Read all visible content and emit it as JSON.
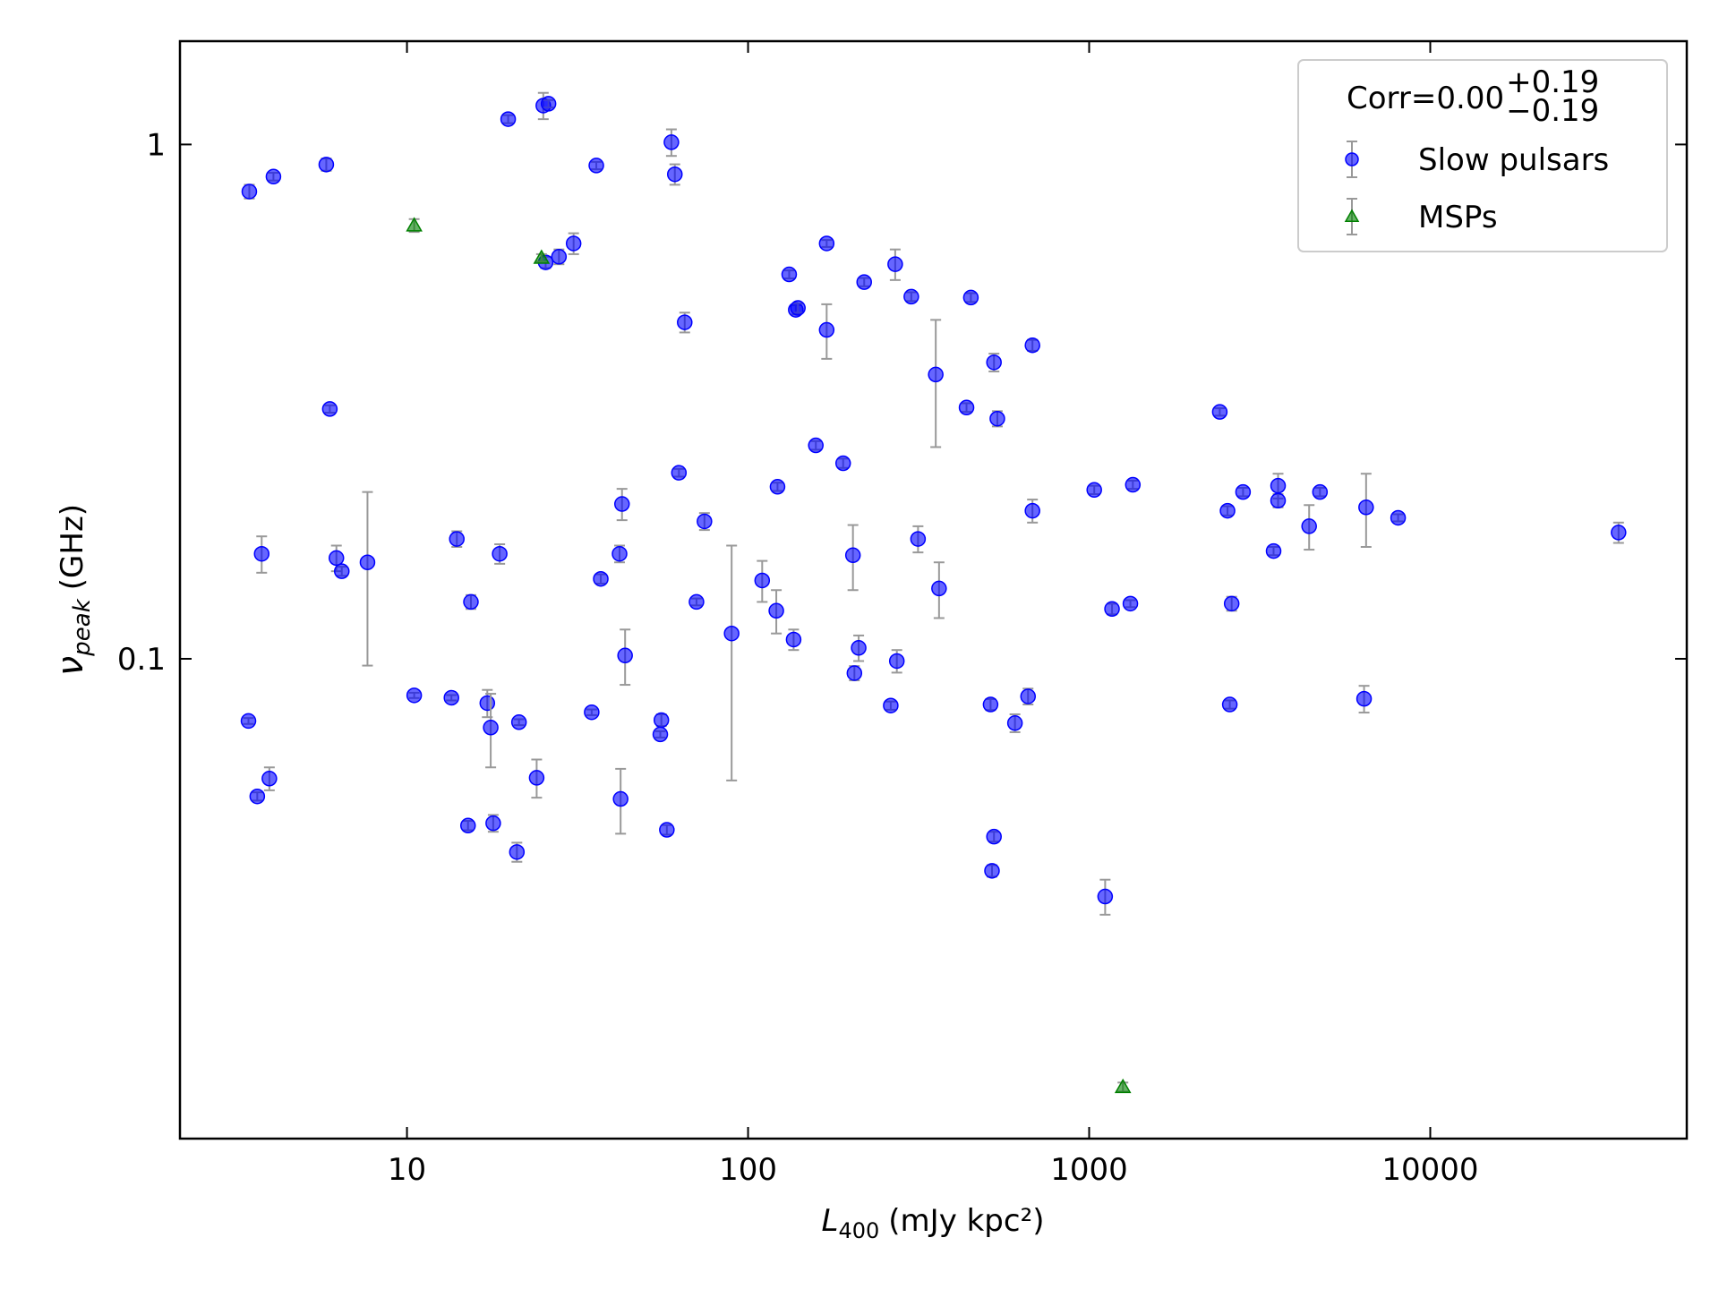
{
  "chart_data": {
    "type": "scatter",
    "x_label": {
      "symbol": "L",
      "subscript": "400",
      "unit": "(mJy kpc²)"
    },
    "y_label": {
      "symbol": "ν",
      "subscript": "peak",
      "unit": "(GHz)"
    },
    "xscale": "log",
    "yscale": "log",
    "xlim": [
      2.16,
      56500
    ],
    "ylim": [
      0.01167,
      1.588
    ],
    "xticks": [
      10,
      100,
      1000,
      10000
    ],
    "yticks": [
      0.1,
      1
    ],
    "legend": {
      "position": "upper right",
      "title": {
        "text": "Corr=0.00",
        "upper": "+0.19",
        "lower": "−0.19"
      }
    },
    "errorbar_color": "#999999",
    "series": [
      {
        "name": "Slow pulsars",
        "marker": "circle",
        "color": "#0000ff",
        "x": [
          3.45,
          4.06,
          5.8,
          19.8,
          25.1,
          26,
          25.5,
          35.9,
          59.6,
          61,
          27.9,
          30.8,
          65.2,
          5.94,
          132,
          138,
          140,
          170,
          170,
          219,
          270,
          301,
          355,
          450,
          526,
          682,
          437,
          538,
          158,
          190,
          62.7,
          122,
          42.7,
          74.5,
          682,
          1035,
          1343,
          2415,
          2545,
          2826,
          3580,
          3580,
          4750,
          4415,
          3473,
          6485,
          8050,
          35650,
          2617,
          1167,
          1321,
          3.75,
          6.21,
          6.44,
          7.66,
          14.0,
          18.7,
          15.4,
          42.0,
          37.0,
          70.6,
          89.5,
          110,
          121,
          136,
          203,
          315,
          363,
          211,
          205,
          273,
          262,
          514,
          662,
          606,
          2584,
          6397,
          3.43,
          3.64,
          3.95,
          10.5,
          13.5,
          17.2,
          17.6,
          21.3,
          34.8,
          55.7,
          55.3,
          43.6,
          24.0,
          42.3,
          15.1,
          17.9,
          21.0,
          57.8,
          526,
          519,
          1114
        ],
        "values": [
          0.81,
          0.866,
          0.914,
          1.12,
          1.19,
          1.2,
          0.59,
          0.91,
          1.01,
          0.875,
          0.605,
          0.642,
          0.451,
          0.306,
          0.559,
          0.477,
          0.481,
          0.642,
          0.436,
          0.54,
          0.585,
          0.506,
          0.357,
          0.504,
          0.377,
          0.407,
          0.308,
          0.293,
          0.26,
          0.24,
          0.23,
          0.216,
          0.2,
          0.185,
          0.194,
          0.213,
          0.218,
          0.302,
          0.194,
          0.211,
          0.217,
          0.203,
          0.211,
          0.181,
          0.162,
          0.197,
          0.188,
          0.176,
          0.128,
          0.125,
          0.128,
          0.16,
          0.157,
          0.148,
          0.154,
          0.171,
          0.16,
          0.129,
          0.16,
          0.143,
          0.129,
          0.112,
          0.142,
          0.124,
          0.109,
          0.159,
          0.171,
          0.137,
          0.105,
          0.0938,
          0.099,
          0.0811,
          0.0815,
          0.0845,
          0.075,
          0.0815,
          0.0836,
          0.0757,
          0.054,
          0.0585,
          0.0849,
          0.084,
          0.082,
          0.0735,
          0.0753,
          0.0787,
          0.076,
          0.0713,
          0.1015,
          0.0587,
          0.0534,
          0.0474,
          0.0479,
          0.0421,
          0.0465,
          0.0451,
          0.0387,
          0.0345
        ],
        "yerr": [
          0.025,
          0.015,
          0.025,
          0.02,
          0.07,
          0.02,
          0.015,
          0.015,
          0.06,
          0.04,
          0.02,
          0.03,
          0.02,
          0.005,
          0.01,
          0.01,
          0.01,
          0.01,
          0.053,
          0.01,
          0.04,
          0.01,
          0.099,
          0.01,
          0.015,
          0.01,
          0.006,
          0.01,
          0.005,
          0.005,
          0.004,
          0.004,
          0.014,
          0.007,
          0.01,
          0.004,
          0.004,
          0.005,
          0.004,
          0.004,
          0.012,
          0.006,
          0.004,
          0.018,
          0.003,
          0.032,
          0.003,
          0.008,
          0.004,
          0.003,
          0.002,
          0.013,
          0.009,
          0.003,
          0.057,
          0.006,
          0.007,
          0.004,
          0.006,
          0.003,
          0.002,
          0.054,
          0.013,
          0.012,
          0.005,
          0.023,
          0.01,
          0.017,
          0.006,
          0.003,
          0.005,
          0.0015,
          0.002,
          0.003,
          0.003,
          0.0015,
          0.005,
          0.001,
          0.001,
          0.003,
          0.001,
          0.001,
          0.005,
          0.012,
          0.001,
          0.001,
          0.002,
          0.001,
          0.0125,
          0.005,
          0.0077,
          0.001,
          0.0018,
          0.0018,
          0.001,
          0.001,
          0.001,
          0.0027
        ]
      },
      {
        "name": "MSPs",
        "marker": "triangle",
        "color": "#008000",
        "x": [
          10.5,
          24.8,
          1256
        ],
        "values": [
          0.696,
          0.602,
          0.0147
        ],
        "yerr": [
          0.02,
          0.01,
          0.0003
        ]
      }
    ]
  }
}
